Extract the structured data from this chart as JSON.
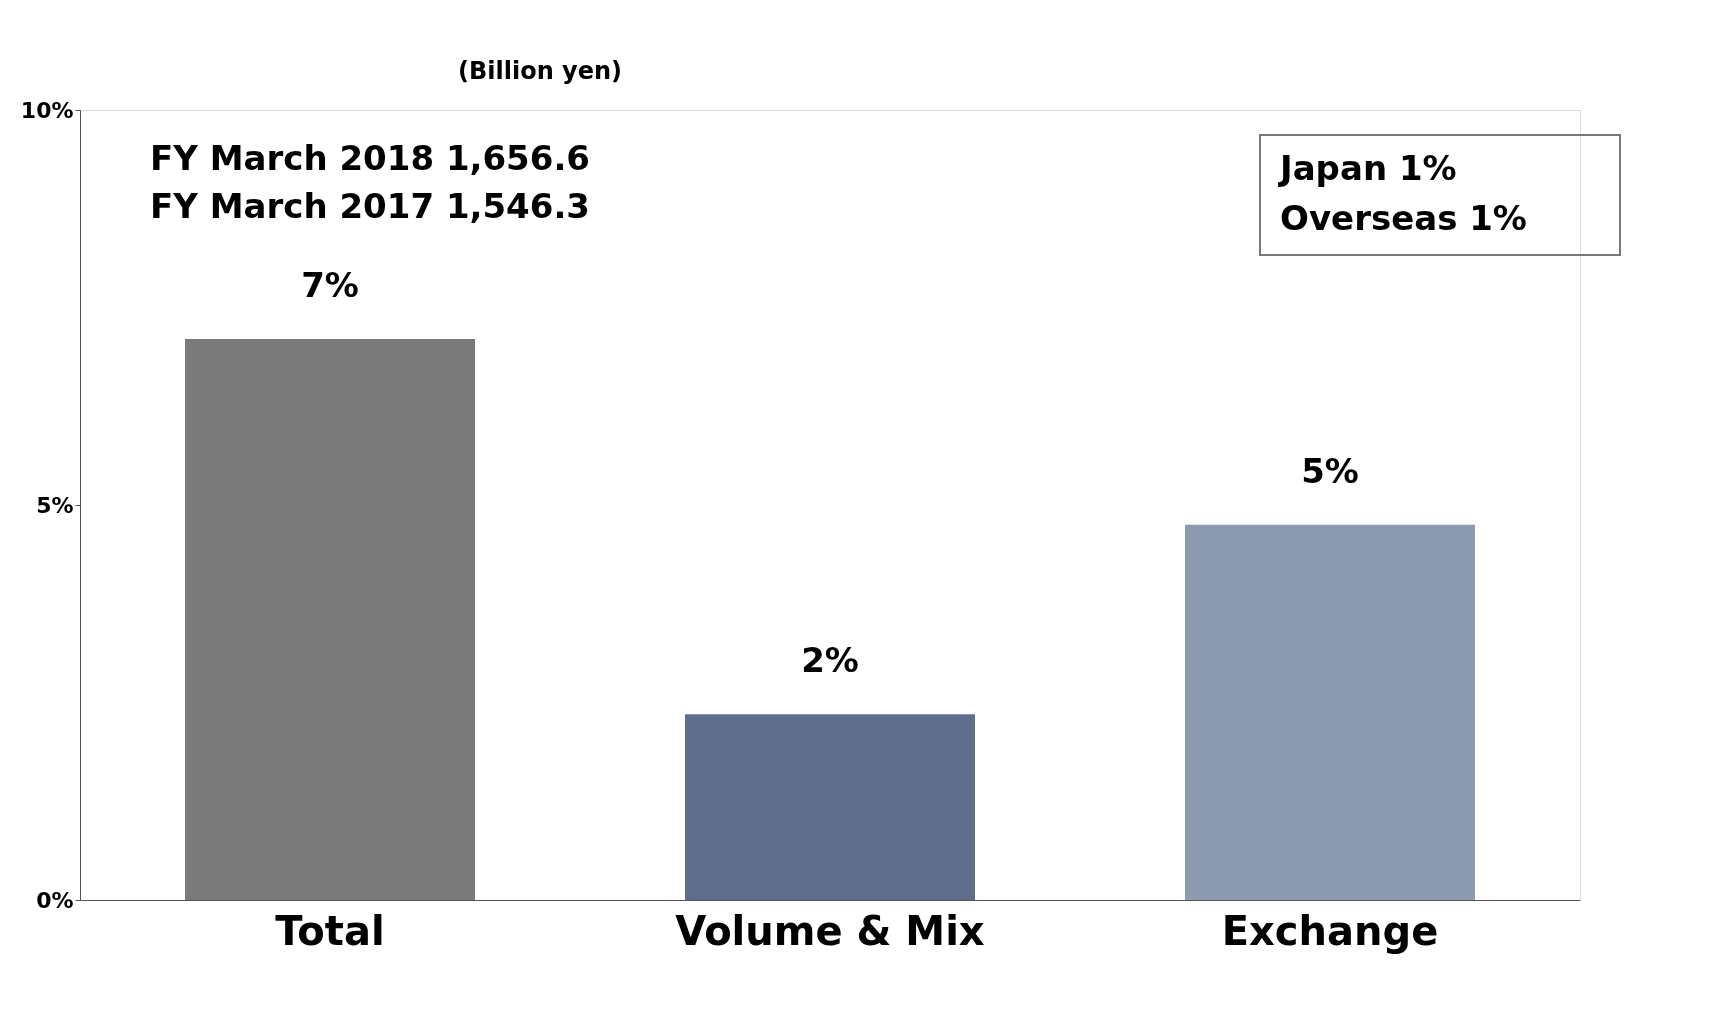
{
  "chart_data": {
    "type": "bar",
    "categories": [
      "Total",
      "Volume & Mix",
      "Exchange"
    ],
    "values": [
      7.1,
      2.35,
      4.75
    ],
    "colors": [
      "#7a7a7a",
      "#5e6e8c",
      "#8d9bb0"
    ],
    "value_labels": [
      "7%",
      "2%",
      "5%"
    ],
    "ylim": [
      0,
      10
    ],
    "yticks": [
      {
        "value": 0,
        "label": "0%"
      },
      {
        "value": 5,
        "label": "5%"
      },
      {
        "value": 10,
        "label": "10%"
      }
    ],
    "grid": false,
    "annotations": [
      "(Billion yen)",
      "FY March 2018  1,656.6",
      "FY March 2017  1,546.3",
      "Japan       1%",
      "Overseas  1%"
    ]
  }
}
